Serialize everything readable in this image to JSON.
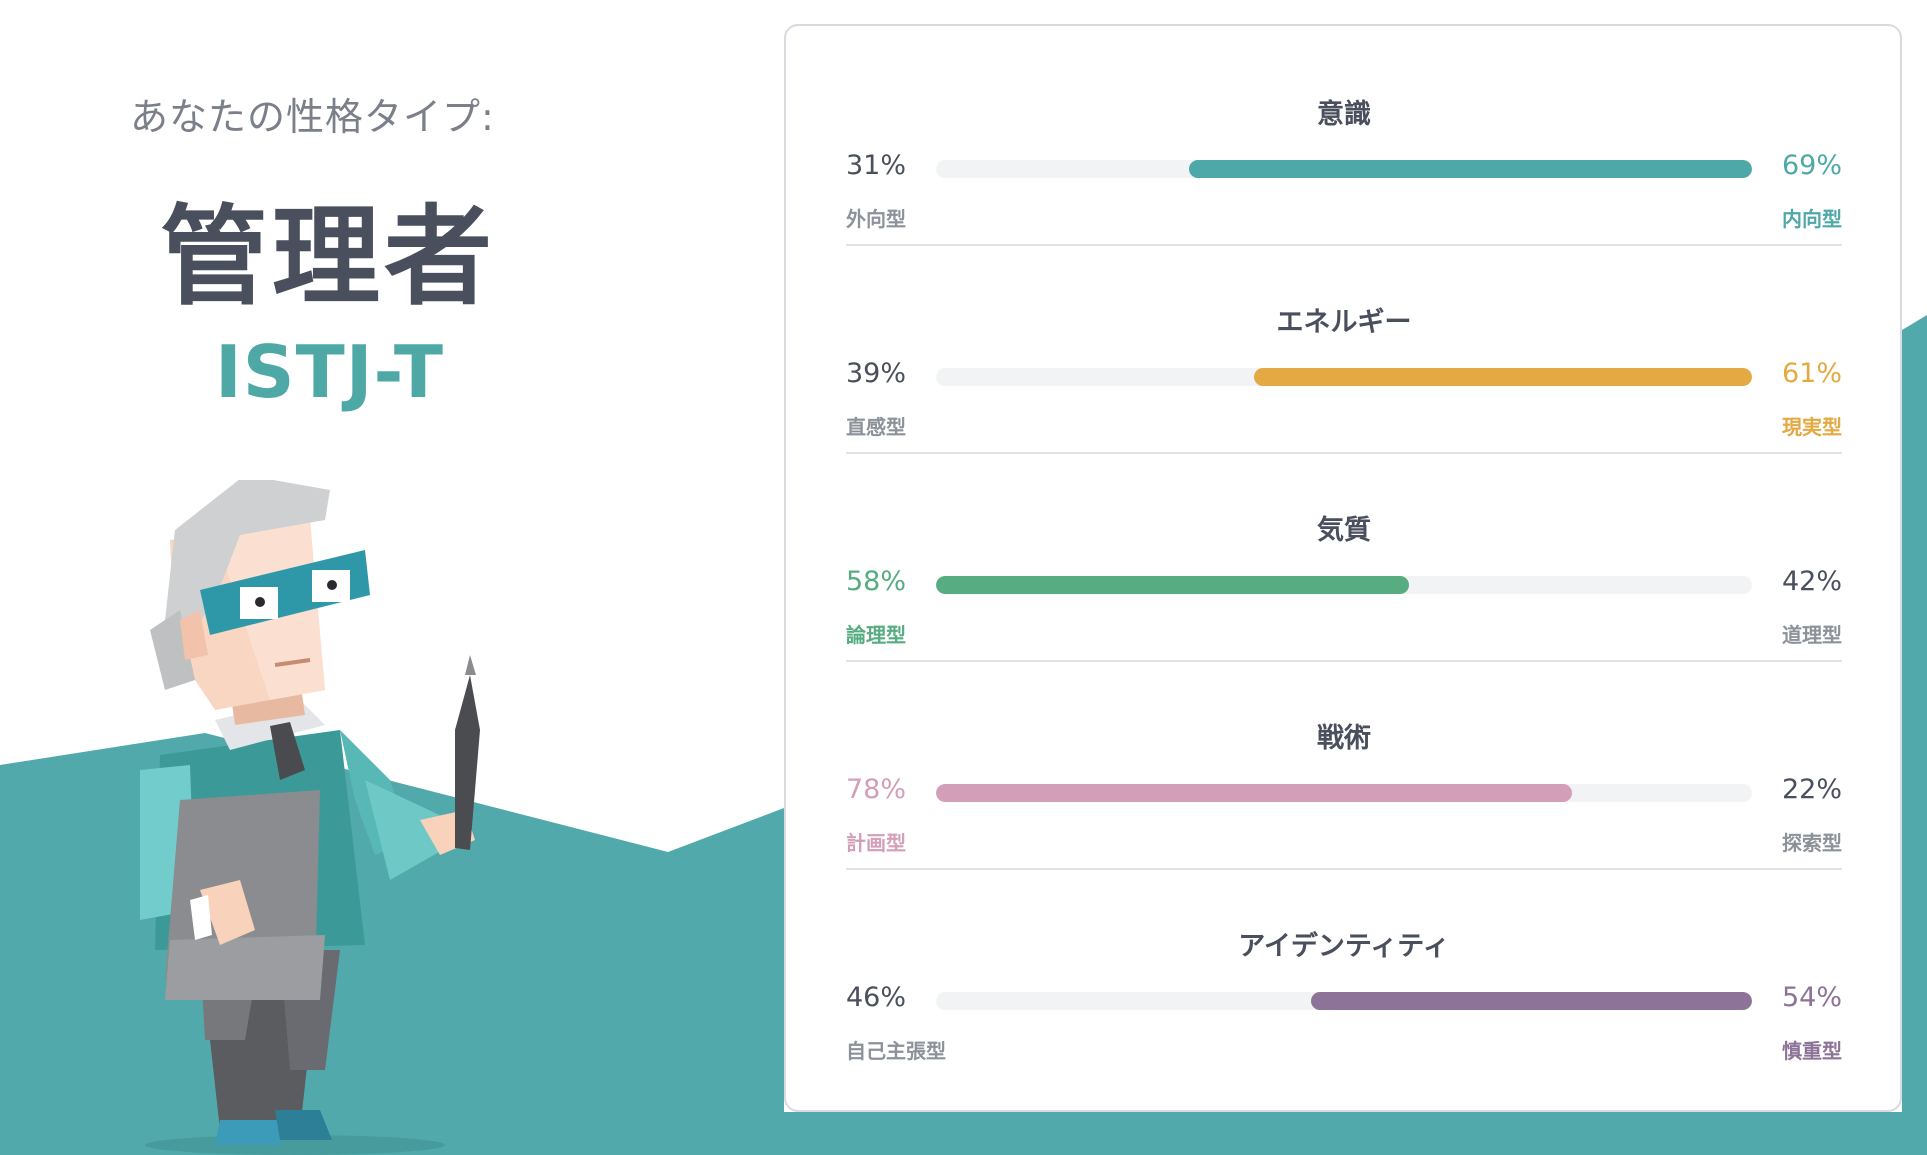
{
  "hero": {
    "type_label": "あなたの性格タイプ:",
    "type_name": "管理者",
    "type_code": "ISTJ-T"
  },
  "colors": {
    "teal_background": "#52a9ab",
    "heading": "#4a4f5e",
    "muted": "#8c919a"
  },
  "traits": [
    {
      "title": "意識",
      "left_pct": "31%",
      "right_pct": "69%",
      "left_label": "外向型",
      "right_label": "内向型",
      "fill_start": 0.31,
      "fill_end": 1.0,
      "color": "#4fa8a8",
      "highlight": "right"
    },
    {
      "title": "エネルギー",
      "left_pct": "39%",
      "right_pct": "61%",
      "left_label": "直感型",
      "right_label": "現実型",
      "fill_start": 0.39,
      "fill_end": 1.0,
      "color": "#e4a942",
      "highlight": "right"
    },
    {
      "title": "気質",
      "left_pct": "58%",
      "right_pct": "42%",
      "left_label": "論理型",
      "right_label": "道理型",
      "fill_start": 0.0,
      "fill_end": 0.58,
      "color": "#57ac82",
      "highlight": "left"
    },
    {
      "title": "戦術",
      "left_pct": "78%",
      "right_pct": "22%",
      "left_label": "計画型",
      "right_label": "探索型",
      "fill_start": 0.0,
      "fill_end": 0.78,
      "color": "#d39fb8",
      "highlight": "left"
    },
    {
      "title": "アイデンティティ",
      "left_pct": "46%",
      "right_pct": "54%",
      "left_label": "自己主張型",
      "right_label": "慎重型",
      "fill_start": 0.46,
      "fill_end": 1.0,
      "color": "#8c7397",
      "highlight": "right"
    }
  ]
}
